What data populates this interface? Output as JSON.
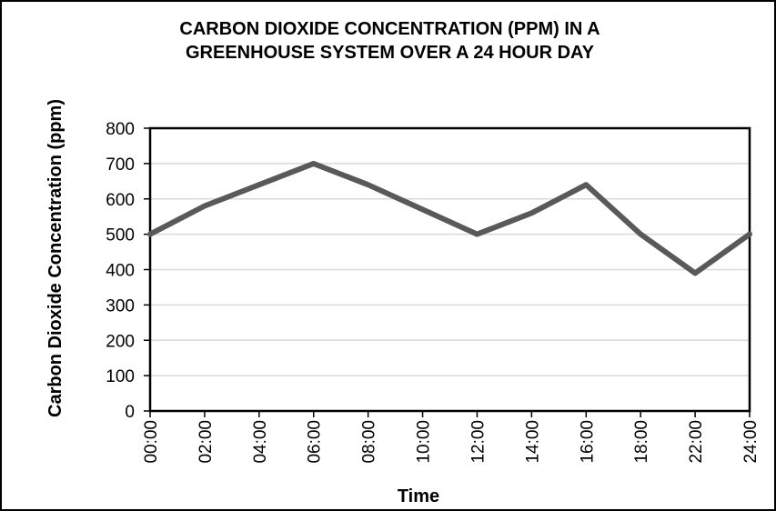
{
  "chart_data": {
    "type": "line",
    "title_lines": [
      "CARBON DIOXIDE CONCENTRATION (PPM) IN A",
      "GREENHOUSE SYSTEM OVER A 24 HOUR DAY"
    ],
    "xlabel": "Time",
    "ylabel": "Carbon Dioxide Concentration (ppm)",
    "categories": [
      "00:00",
      "02:00",
      "04:00",
      "06:00",
      "08:00",
      "10:00",
      "12:00",
      "14:00",
      "16:00",
      "18:00",
      "22:00",
      "24:00"
    ],
    "series": [
      {
        "values": [
          500,
          580,
          640,
          700,
          640,
          570,
          500,
          560,
          640,
          500,
          390,
          500
        ]
      }
    ],
    "yticks": [
      0,
      100,
      200,
      300,
      400,
      500,
      600,
      700,
      800
    ],
    "ylim": [
      0,
      800
    ],
    "grid": true,
    "legend": "none",
    "line_color": "#595959",
    "grid_color": "#d9d9d9"
  }
}
